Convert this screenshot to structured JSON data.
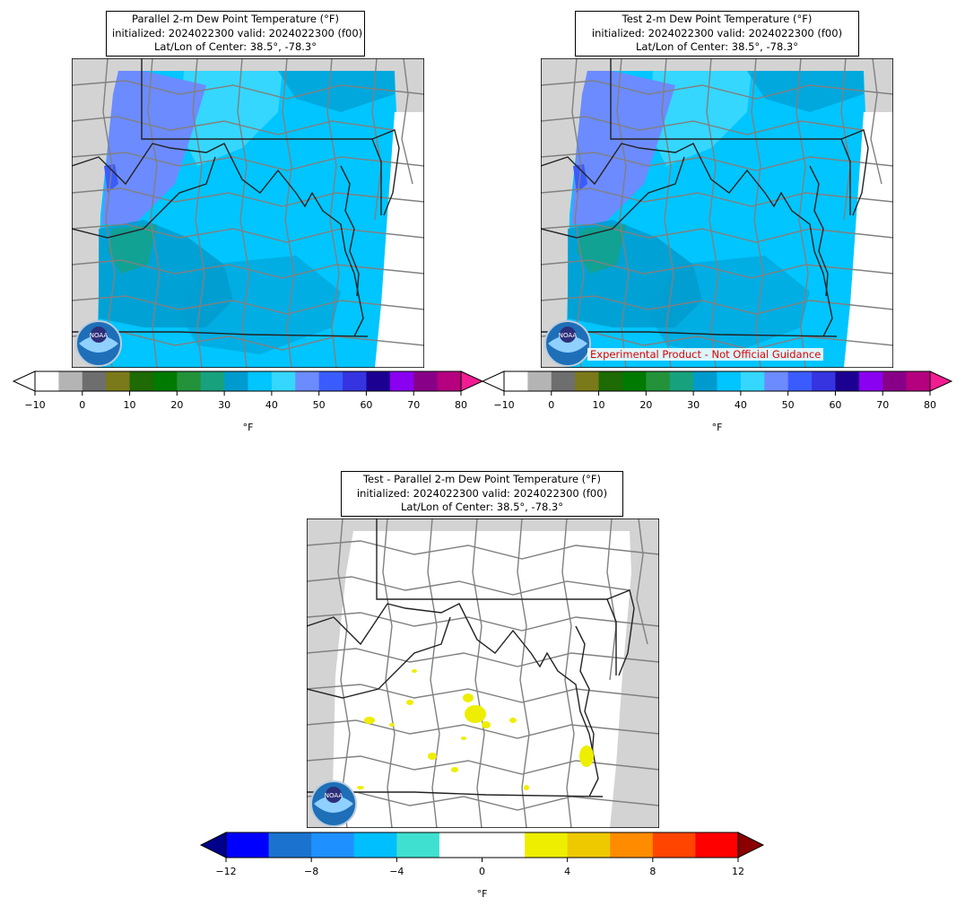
{
  "panels": {
    "parallel": {
      "title_line1": "Parallel 2-m Dew Point Temperature (°F)",
      "title_line2": "initialized: 2024022300 valid: 2024022300 (f00)",
      "title_line3": "Lat/Lon of Center: 38.5°, -78.3°"
    },
    "test": {
      "title_line1": "Test 2-m Dew Point Temperature (°F)",
      "title_line2": "initialized: 2024022300 valid: 2024022300 (f00)",
      "title_line3": "Lat/Lon of Center: 38.5°, -78.3°",
      "notice": "Experimental Product - Not Official Guidance"
    },
    "diff": {
      "title_line1": "Test - Parallel 2-m Dew Point Temperature (°F)",
      "title_line2": "initialized: 2024022300 valid: 2024022300 (f00)",
      "title_line3": "Lat/Lon of Center: 38.5°, -78.3°"
    }
  },
  "logo_text": "NOAA",
  "colorbars": {
    "dewpoint": {
      "unit": "°F",
      "ticks": [
        "−10",
        "0",
        "10",
        "20",
        "30",
        "40",
        "50",
        "60",
        "70",
        "80"
      ],
      "tick_values": [
        -10,
        0,
        10,
        20,
        30,
        40,
        50,
        60,
        70,
        80
      ],
      "range": [
        -10,
        80
      ],
      "colors": [
        "#ffffff",
        "#b4b4b4",
        "#6e6e6e",
        "#7b7a1a",
        "#1e6a04",
        "#007a00",
        "#23923a",
        "#17a17d",
        "#009bce",
        "#00c5ff",
        "#35d7ff",
        "#6c8bff",
        "#3a5cff",
        "#3534e0",
        "#1c0091",
        "#8a00f0",
        "#890088",
        "#b5007f"
      ],
      "under_color": "#ffffff",
      "over_color": "#f21b92"
    },
    "difference": {
      "unit": "°F",
      "ticks": [
        "−12",
        "−8",
        "−4",
        "0",
        "4",
        "8",
        "12"
      ],
      "tick_values": [
        -12,
        -8,
        -4,
        0,
        4,
        8,
        12
      ],
      "range": [
        -12,
        12
      ],
      "colors": [
        "#0000ff",
        "#1b73cf",
        "#1e90ff",
        "#00bfff",
        "#40e0d0",
        "#ffffff",
        "#ffffff",
        "#eeee00",
        "#eec900",
        "#ff8c00",
        "#ff4500",
        "#ff0000"
      ],
      "under_color": "#00008b",
      "over_color": "#8b0000"
    }
  }
}
